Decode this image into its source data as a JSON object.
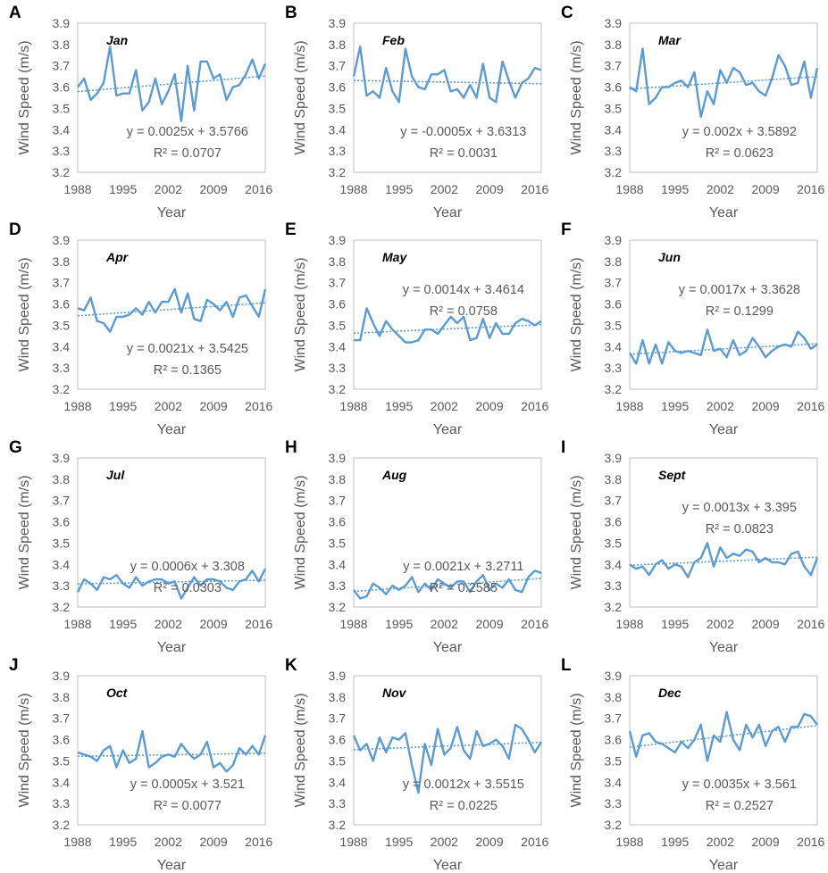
{
  "colors": {
    "line": "#5B9BD5",
    "trend": "#5B9BD5",
    "axis": "#bfbfbf",
    "text": "#595959"
  },
  "axis_labels": {
    "xlabel": "Year",
    "ylabel": "Wind Speed (m/s)"
  },
  "x_ticks": [
    "1988",
    "1995",
    "2002",
    "2009",
    "2016"
  ],
  "chart_data": [
    {
      "type": "line",
      "panel": "A",
      "title": "Jan",
      "xlabel": "Year",
      "ylabel": "Wind Speed (m/s)",
      "ylim": [
        3.2,
        3.9
      ],
      "yticks": [
        3.2,
        3.3,
        3.4,
        3.5,
        3.6,
        3.7,
        3.8,
        3.9
      ],
      "xticks": [
        1988,
        1995,
        2002,
        2009,
        2016
      ],
      "x_start": 1988,
      "x_end": 2017,
      "values": [
        3.6,
        3.64,
        3.54,
        3.57,
        3.62,
        3.79,
        3.56,
        3.57,
        3.57,
        3.68,
        3.49,
        3.53,
        3.64,
        3.52,
        3.58,
        3.66,
        3.44,
        3.7,
        3.49,
        3.72,
        3.72,
        3.64,
        3.66,
        3.54,
        3.6,
        3.61,
        3.66,
        3.73,
        3.64,
        3.71
      ],
      "trend": {
        "equation": "y = 0.0025x + 3.5766",
        "r2": "R² = 0.0707",
        "slope": 0.0025,
        "intercept": 3.5766
      },
      "annotation_pos": "bottom-right"
    },
    {
      "type": "line",
      "panel": "B",
      "title": "Feb",
      "xlabel": "Year",
      "ylabel": "Wind Speed (m/s)",
      "ylim": [
        3.2,
        3.9
      ],
      "yticks": [
        3.2,
        3.3,
        3.4,
        3.5,
        3.6,
        3.7,
        3.8,
        3.9
      ],
      "xticks": [
        1988,
        1995,
        2002,
        2009,
        2016
      ],
      "x_start": 1988,
      "x_end": 2017,
      "values": [
        3.65,
        3.79,
        3.56,
        3.58,
        3.55,
        3.69,
        3.58,
        3.53,
        3.78,
        3.65,
        3.6,
        3.59,
        3.66,
        3.66,
        3.68,
        3.58,
        3.59,
        3.55,
        3.61,
        3.55,
        3.71,
        3.55,
        3.53,
        3.72,
        3.63,
        3.55,
        3.62,
        3.64,
        3.69,
        3.68
      ],
      "trend": {
        "equation": "y = -0.0005x + 3.6313",
        "r2": "R² = 0.0031",
        "slope": -0.0005,
        "intercept": 3.6313
      },
      "annotation_pos": "bottom-right"
    },
    {
      "type": "line",
      "panel": "C",
      "title": "Mar",
      "xlabel": "Year",
      "ylabel": "Wind Speed (m/s)",
      "ylim": [
        3.2,
        3.9
      ],
      "yticks": [
        3.2,
        3.3,
        3.4,
        3.5,
        3.6,
        3.7,
        3.8,
        3.9
      ],
      "xticks": [
        1988,
        1995,
        2002,
        2009,
        2016
      ],
      "x_start": 1988,
      "x_end": 2017,
      "values": [
        3.6,
        3.58,
        3.78,
        3.52,
        3.55,
        3.6,
        3.6,
        3.62,
        3.63,
        3.6,
        3.67,
        3.46,
        3.58,
        3.52,
        3.68,
        3.62,
        3.69,
        3.67,
        3.61,
        3.62,
        3.58,
        3.56,
        3.64,
        3.75,
        3.7,
        3.61,
        3.62,
        3.72,
        3.55,
        3.69
      ],
      "trend": {
        "equation": "y = 0.002x + 3.5892",
        "r2": "R² = 0.0623",
        "slope": 0.002,
        "intercept": 3.5892
      },
      "annotation_pos": "bottom-right"
    },
    {
      "type": "line",
      "panel": "D",
      "title": "Apr",
      "xlabel": "Year",
      "ylabel": "Wind Speed (m/s)",
      "ylim": [
        3.2,
        3.9
      ],
      "yticks": [
        3.2,
        3.3,
        3.4,
        3.5,
        3.6,
        3.7,
        3.8,
        3.9
      ],
      "xticks": [
        1988,
        1995,
        2002,
        2009,
        2016
      ],
      "x_start": 1988,
      "x_end": 2017,
      "values": [
        3.58,
        3.57,
        3.63,
        3.52,
        3.51,
        3.47,
        3.54,
        3.54,
        3.55,
        3.58,
        3.55,
        3.61,
        3.56,
        3.61,
        3.61,
        3.67,
        3.56,
        3.65,
        3.53,
        3.52,
        3.62,
        3.6,
        3.57,
        3.61,
        3.54,
        3.63,
        3.64,
        3.59,
        3.54,
        3.67
      ],
      "trend": {
        "equation": "y = 0.0021x + 3.5425",
        "r2": "R² = 0.1365",
        "slope": 0.0021,
        "intercept": 3.5425
      },
      "annotation_pos": "bottom-right"
    },
    {
      "type": "line",
      "panel": "E",
      "title": "May",
      "xlabel": "Year",
      "ylabel": "Wind Speed (m/s)",
      "ylim": [
        3.2,
        3.9
      ],
      "yticks": [
        3.2,
        3.3,
        3.4,
        3.5,
        3.6,
        3.7,
        3.8,
        3.9
      ],
      "xticks": [
        1988,
        1995,
        2002,
        2009,
        2016
      ],
      "x_start": 1988,
      "x_end": 2017,
      "values": [
        3.43,
        3.43,
        3.58,
        3.51,
        3.45,
        3.52,
        3.48,
        3.45,
        3.42,
        3.42,
        3.43,
        3.48,
        3.48,
        3.46,
        3.5,
        3.54,
        3.51,
        3.54,
        3.43,
        3.44,
        3.53,
        3.44,
        3.51,
        3.46,
        3.46,
        3.51,
        3.53,
        3.52,
        3.5,
        3.52
      ],
      "trend": {
        "equation": "y = 0.0014x + 3.4614",
        "r2": "R² = 0.0758",
        "slope": 0.0014,
        "intercept": 3.4614
      },
      "annotation_pos": "top-right"
    },
    {
      "type": "line",
      "panel": "F",
      "title": "Jun",
      "xlabel": "Year",
      "ylabel": "Wind Speed (m/s)",
      "ylim": [
        3.2,
        3.9
      ],
      "yticks": [
        3.2,
        3.3,
        3.4,
        3.5,
        3.6,
        3.7,
        3.8,
        3.9
      ],
      "xticks": [
        1988,
        1995,
        2002,
        2009,
        2016
      ],
      "x_start": 1988,
      "x_end": 2017,
      "values": [
        3.37,
        3.32,
        3.43,
        3.32,
        3.41,
        3.32,
        3.42,
        3.38,
        3.37,
        3.38,
        3.37,
        3.36,
        3.48,
        3.38,
        3.39,
        3.35,
        3.43,
        3.36,
        3.38,
        3.44,
        3.4,
        3.35,
        3.38,
        3.4,
        3.41,
        3.4,
        3.47,
        3.44,
        3.39,
        3.41
      ],
      "trend": {
        "equation": "y = 0.0017x + 3.3628",
        "r2": "R² = 0.1299",
        "slope": 0.0017,
        "intercept": 3.3628
      },
      "annotation_pos": "top-right"
    },
    {
      "type": "line",
      "panel": "G",
      "title": "Jul",
      "xlabel": "Year",
      "ylabel": "Wind Speed (m/s)",
      "ylim": [
        3.2,
        3.9
      ],
      "yticks": [
        3.2,
        3.3,
        3.4,
        3.5,
        3.6,
        3.7,
        3.8,
        3.9
      ],
      "xticks": [
        1988,
        1995,
        2002,
        2009,
        2016
      ],
      "x_start": 1988,
      "x_end": 2017,
      "values": [
        3.27,
        3.33,
        3.31,
        3.28,
        3.34,
        3.33,
        3.35,
        3.31,
        3.29,
        3.34,
        3.3,
        3.32,
        3.33,
        3.33,
        3.31,
        3.32,
        3.24,
        3.29,
        3.34,
        3.3,
        3.33,
        3.33,
        3.32,
        3.29,
        3.28,
        3.32,
        3.33,
        3.37,
        3.32,
        3.38
      ],
      "trend": {
        "equation": "y = 0.0006x + 3.308",
        "r2": "R² = 0.0303",
        "slope": 0.0006,
        "intercept": 3.308
      },
      "annotation_pos": "bottom-right"
    },
    {
      "type": "line",
      "panel": "H",
      "title": "Aug",
      "xlabel": "Year",
      "ylabel": "Wind Speed (m/s)",
      "ylim": [
        3.2,
        3.9
      ],
      "yticks": [
        3.2,
        3.3,
        3.4,
        3.5,
        3.6,
        3.7,
        3.8,
        3.9
      ],
      "xticks": [
        1988,
        1995,
        2002,
        2009,
        2016
      ],
      "x_start": 1988,
      "x_end": 2017,
      "values": [
        3.28,
        3.24,
        3.25,
        3.31,
        3.29,
        3.26,
        3.3,
        3.28,
        3.3,
        3.34,
        3.27,
        3.31,
        3.28,
        3.33,
        3.31,
        3.29,
        3.32,
        3.32,
        3.27,
        3.32,
        3.35,
        3.28,
        3.31,
        3.29,
        3.33,
        3.28,
        3.27,
        3.34,
        3.37,
        3.36
      ],
      "trend": {
        "equation": "y = 0.0021x + 3.2711",
        "r2": "R² = 0.2585",
        "slope": 0.0021,
        "intercept": 3.2711
      },
      "annotation_pos": "bottom-right"
    },
    {
      "type": "line",
      "panel": "I",
      "title": "Sept",
      "xlabel": "Year",
      "ylabel": "Wind Speed (m/s)",
      "ylim": [
        3.2,
        3.9
      ],
      "yticks": [
        3.2,
        3.3,
        3.4,
        3.5,
        3.6,
        3.7,
        3.8,
        3.9
      ],
      "xticks": [
        1988,
        1995,
        2002,
        2009,
        2016
      ],
      "x_start": 1988,
      "x_end": 2017,
      "values": [
        3.4,
        3.38,
        3.39,
        3.35,
        3.4,
        3.42,
        3.38,
        3.4,
        3.39,
        3.34,
        3.41,
        3.43,
        3.5,
        3.39,
        3.48,
        3.43,
        3.45,
        3.44,
        3.47,
        3.46,
        3.41,
        3.43,
        3.41,
        3.41,
        3.4,
        3.45,
        3.46,
        3.39,
        3.35,
        3.43
      ],
      "trend": {
        "equation": "y = 0.0013x + 3.395",
        "r2": "R² = 0.0823",
        "slope": 0.0013,
        "intercept": 3.395
      },
      "annotation_pos": "top-right"
    },
    {
      "type": "line",
      "panel": "J",
      "title": "Oct",
      "xlabel": "Year",
      "ylabel": "Wind Speed (m/s)",
      "ylim": [
        3.2,
        3.9
      ],
      "yticks": [
        3.2,
        3.3,
        3.4,
        3.5,
        3.6,
        3.7,
        3.8,
        3.9
      ],
      "xticks": [
        1988,
        1995,
        2002,
        2009,
        2016
      ],
      "x_start": 1988,
      "x_end": 2017,
      "values": [
        3.54,
        3.53,
        3.52,
        3.5,
        3.55,
        3.57,
        3.47,
        3.55,
        3.49,
        3.51,
        3.64,
        3.47,
        3.49,
        3.52,
        3.53,
        3.52,
        3.58,
        3.54,
        3.51,
        3.53,
        3.59,
        3.47,
        3.49,
        3.45,
        3.48,
        3.56,
        3.53,
        3.57,
        3.53,
        3.62
      ],
      "trend": {
        "equation": "y = 0.0005x + 3.521",
        "r2": "R² = 0.0077",
        "slope": 0.0005,
        "intercept": 3.521
      },
      "annotation_pos": "bottom-right"
    },
    {
      "type": "line",
      "panel": "K",
      "title": "Nov",
      "xlabel": "Year",
      "ylabel": "Wind Speed (m/s)",
      "ylim": [
        3.2,
        3.9
      ],
      "yticks": [
        3.2,
        3.3,
        3.4,
        3.5,
        3.6,
        3.7,
        3.8,
        3.9
      ],
      "xticks": [
        1988,
        1995,
        2002,
        2009,
        2016
      ],
      "x_start": 1988,
      "x_end": 2017,
      "values": [
        3.62,
        3.55,
        3.58,
        3.5,
        3.61,
        3.54,
        3.61,
        3.6,
        3.63,
        3.48,
        3.35,
        3.58,
        3.48,
        3.65,
        3.53,
        3.56,
        3.66,
        3.55,
        3.51,
        3.64,
        3.57,
        3.58,
        3.6,
        3.57,
        3.51,
        3.67,
        3.65,
        3.6,
        3.54,
        3.59
      ],
      "trend": {
        "equation": "y = 0.0012x + 3.5515",
        "r2": "R² = 0.0225",
        "slope": 0.0012,
        "intercept": 3.5515
      },
      "annotation_pos": "bottom-right"
    },
    {
      "type": "line",
      "panel": "L",
      "title": "Dec",
      "xlabel": "Year",
      "ylabel": "Wind Speed (m/s)",
      "ylim": [
        3.2,
        3.9
      ],
      "yticks": [
        3.2,
        3.3,
        3.4,
        3.5,
        3.6,
        3.7,
        3.8,
        3.9
      ],
      "xticks": [
        1988,
        1995,
        2002,
        2009,
        2016
      ],
      "x_start": 1988,
      "x_end": 2017,
      "values": [
        3.64,
        3.52,
        3.62,
        3.63,
        3.59,
        3.58,
        3.56,
        3.54,
        3.59,
        3.56,
        3.6,
        3.67,
        3.5,
        3.62,
        3.59,
        3.73,
        3.6,
        3.55,
        3.67,
        3.61,
        3.67,
        3.57,
        3.64,
        3.66,
        3.59,
        3.66,
        3.66,
        3.72,
        3.71,
        3.67
      ],
      "trend": {
        "equation": "y = 0.0035x + 3.561",
        "r2": "R² = 0.2527",
        "slope": 0.0035,
        "intercept": 3.561
      },
      "annotation_pos": "bottom-right"
    }
  ]
}
